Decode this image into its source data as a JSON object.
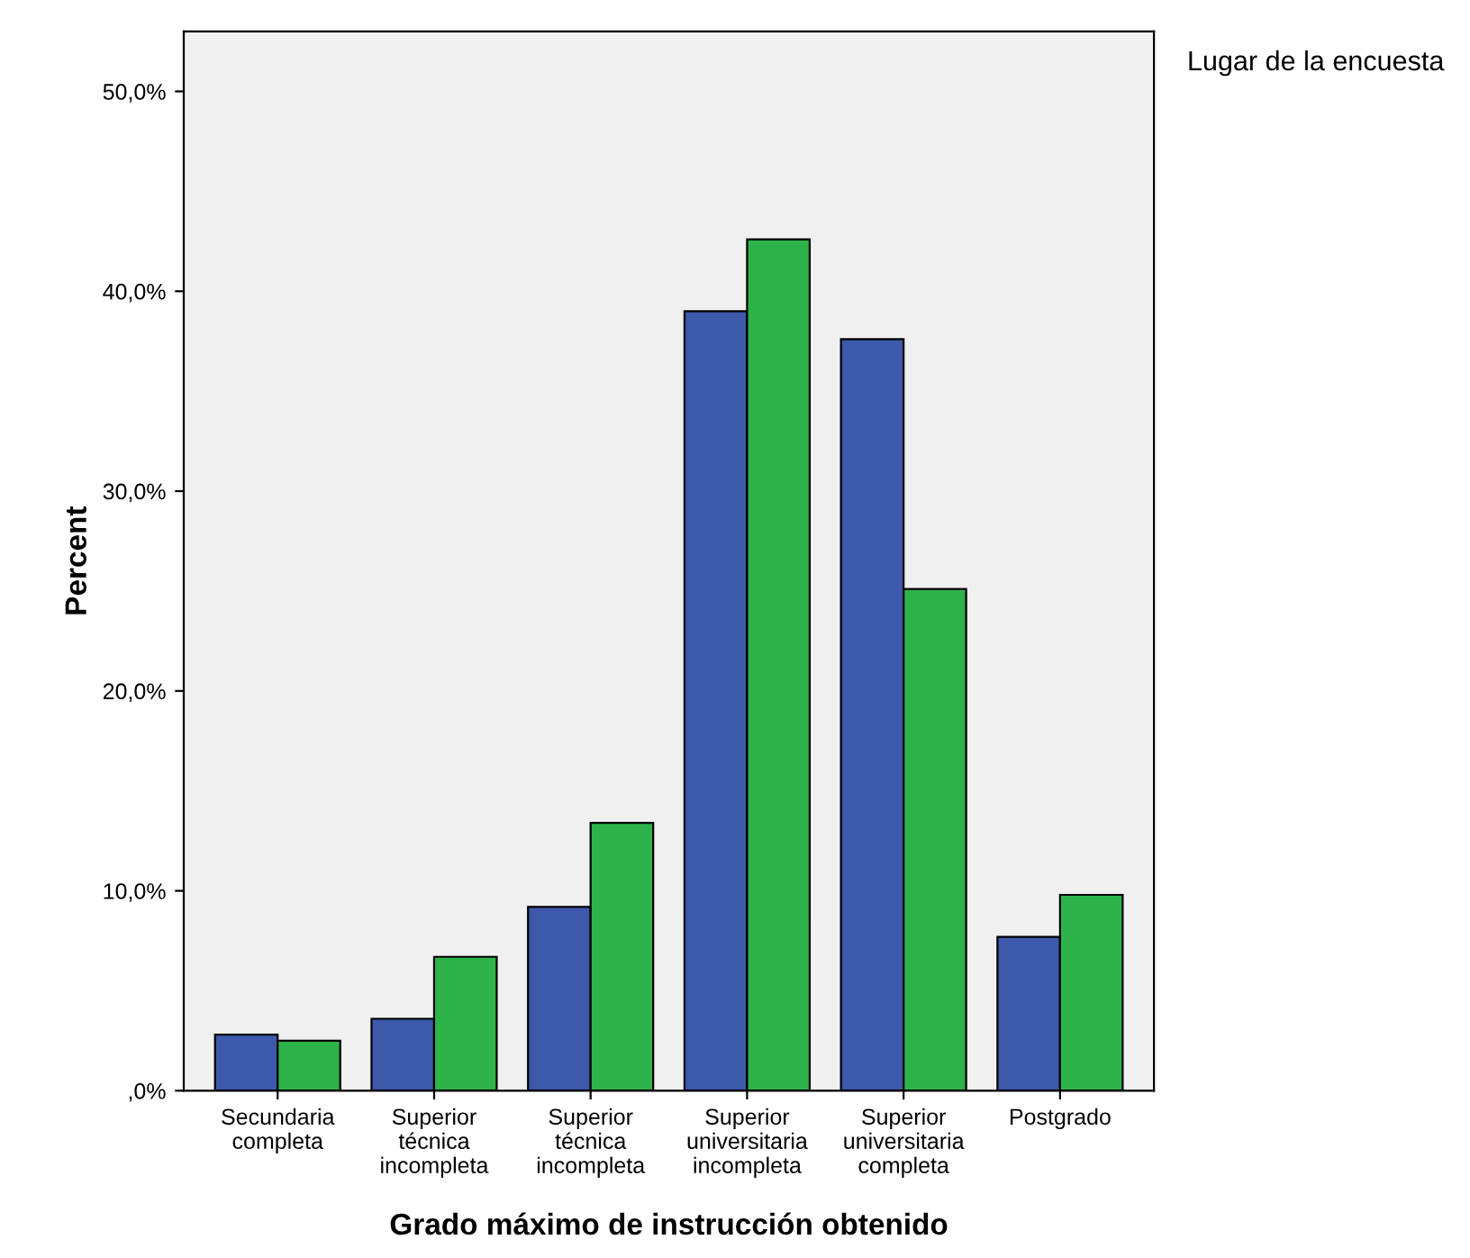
{
  "chart_data": {
    "type": "bar",
    "xlabel": "Grado máximo de instrucción obtenido",
    "ylabel": "Percent",
    "legend_title": "Lugar de la encuesta",
    "categories": [
      "Secundaria\ncompleta",
      "Superior\ntécnica\nincompleta",
      "Superior\ntécnica\nincompleta",
      "Superior\nuniversitaria\nincompleta",
      "Superior\nuniversitaria\ncompleta",
      "Postgrado"
    ],
    "series": [
      {
        "color": "#3e58ac",
        "values": [
          2.8,
          3.6,
          9.2,
          39.0,
          37.6,
          7.7
        ]
      },
      {
        "color": "#2db34a",
        "values": [
          2.5,
          6.7,
          13.4,
          42.6,
          25.1,
          9.8
        ]
      }
    ],
    "ylim": [
      0,
      53
    ],
    "yticks": [
      {
        "value": 0,
        "label": ",0%"
      },
      {
        "value": 10,
        "label": "10,0%"
      },
      {
        "value": 20,
        "label": "20,0%"
      },
      {
        "value": 30,
        "label": "30,0%"
      },
      {
        "value": 40,
        "label": "40,0%"
      },
      {
        "value": 50,
        "label": "50,0%"
      }
    ],
    "grid": false
  }
}
